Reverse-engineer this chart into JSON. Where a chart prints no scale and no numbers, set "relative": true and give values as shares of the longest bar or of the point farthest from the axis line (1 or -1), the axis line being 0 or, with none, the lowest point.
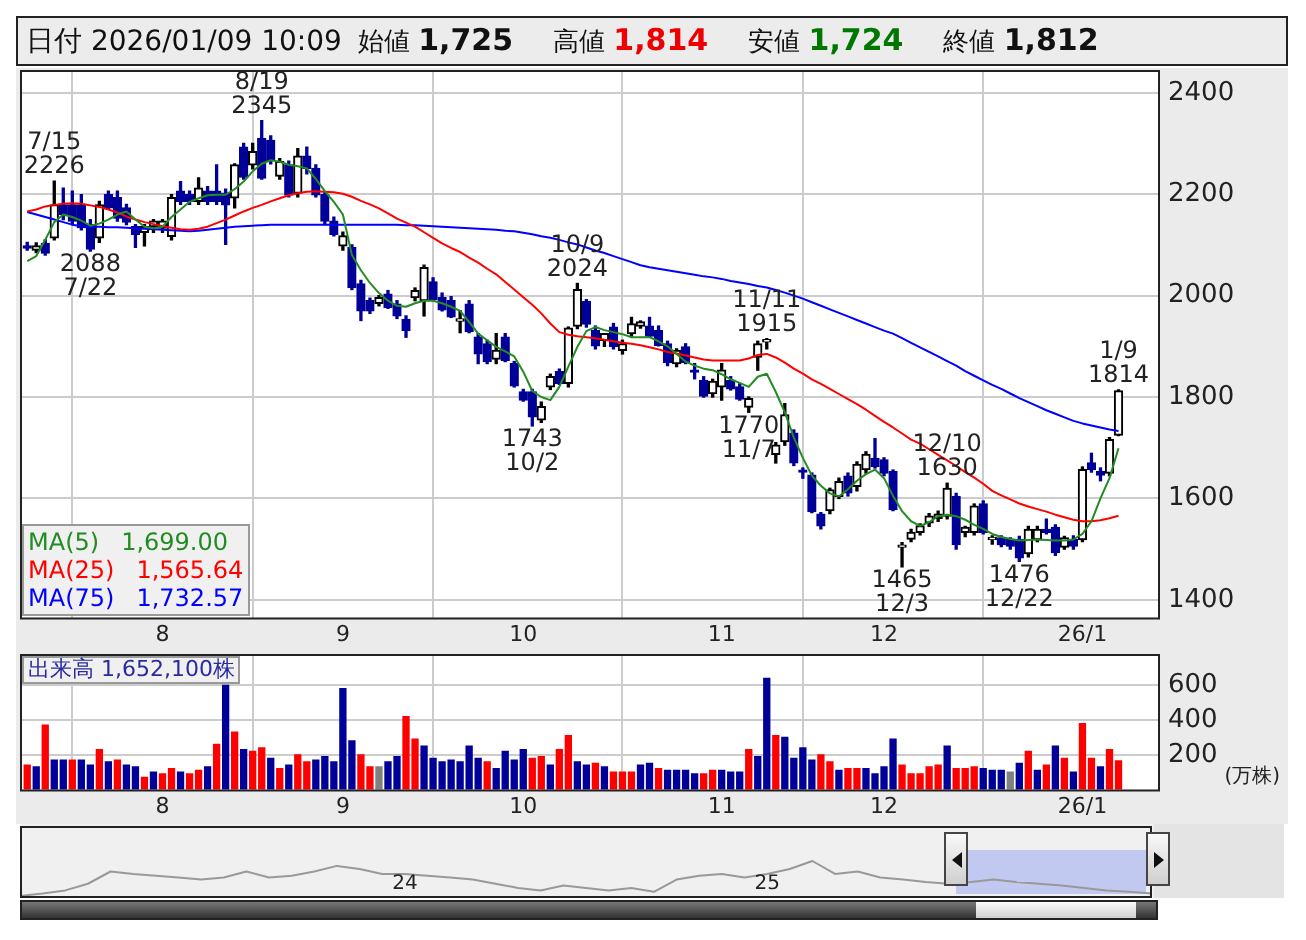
{
  "chart_data": [
    {
      "type": "candlestick",
      "title": "日付 2026/01/09 10:09",
      "legend": "bottom left",
      "grid": true,
      "annotations": [
        "始値 1,725",
        "高値 1,814",
        "安値 1,724",
        "終値 1,812",
        {
          "text": "7/15\n2226",
          "y": 2226
        },
        {
          "text": "2088\n7/22",
          "y": 2088
        },
        {
          "text": "8/19\n2345",
          "y": 2345
        },
        {
          "text": "1743\n10/2",
          "y": 1743
        },
        {
          "text": "10/9\n2024",
          "y": 2024
        },
        {
          "text": "1770\n11/7",
          "y": 1770
        },
        {
          "text": "11/11\n1915",
          "y": 1915
        },
        {
          "text": "1465\n12/3",
          "y": 1465
        },
        {
          "text": "12/10\n1630",
          "y": 1630
        },
        {
          "text": "1476\n12/22",
          "y": 1476
        },
        {
          "text": "1/9\n1814",
          "y": 1814
        }
      ],
      "categories": [
        null,
        null,
        null,
        null,
        null,
        null,
        null,
        null,
        null,
        null,
        null,
        null,
        null,
        null,
        null,
        "8",
        null,
        null,
        null,
        null,
        null,
        null,
        null,
        null,
        null,
        null,
        null,
        null,
        null,
        null,
        null,
        null,
        null,
        null,
        null,
        "9",
        null,
        null,
        null,
        null,
        null,
        null,
        null,
        null,
        null,
        null,
        null,
        null,
        null,
        null,
        null,
        null,
        null,
        null,
        null,
        "10",
        null,
        null,
        null,
        null,
        null,
        null,
        null,
        null,
        null,
        null,
        null,
        null,
        null,
        null,
        null,
        null,
        null,
        null,
        null,
        null,
        null,
        "11",
        null,
        null,
        null,
        null,
        null,
        null,
        null,
        null,
        null,
        null,
        null,
        null,
        null,
        null,
        null,
        null,
        null,
        "12",
        null,
        null,
        null,
        null,
        null,
        null,
        null,
        null,
        null,
        null,
        null,
        null,
        null,
        null,
        null,
        null,
        null,
        null,
        null,
        null,
        null,
        "26/1",
        null,
        null,
        null,
        null
      ],
      "ohlc": [
        [
          2098,
          2105,
          2090,
          2094
        ],
        [
          2090,
          2104,
          2085,
          2098
        ],
        [
          2103,
          2110,
          2080,
          2084
        ],
        [
          2114,
          2226,
          2110,
          2179
        ],
        [
          2179,
          2212,
          2150,
          2160
        ],
        [
          2179,
          2206,
          2140,
          2147
        ],
        [
          2179,
          2199,
          2130,
          2134
        ],
        [
          2140,
          2150,
          2088,
          2092
        ],
        [
          2114,
          2186,
          2105,
          2179
        ],
        [
          2199,
          2206,
          2170,
          2173
        ],
        [
          2193,
          2206,
          2147,
          2153
        ],
        [
          2173,
          2180,
          2140,
          2145
        ],
        [
          2136,
          2140,
          2095,
          2121
        ],
        [
          2125,
          2140,
          2098,
          2136
        ],
        [
          2136,
          2150,
          2125,
          2147
        ],
        [
          2133,
          2150,
          2125,
          2147
        ],
        [
          2117,
          2199,
          2110,
          2193
        ],
        [
          2206,
          2225,
          2180,
          2186
        ],
        [
          2199,
          2206,
          2180,
          2186
        ],
        [
          2186,
          2232,
          2180,
          2212
        ],
        [
          2206,
          2215,
          2180,
          2186
        ],
        [
          2206,
          2258,
          2180,
          2186
        ],
        [
          2202,
          2210,
          2101,
          2179
        ],
        [
          2193,
          2260,
          2173,
          2258
        ],
        [
          2293,
          2300,
          2230,
          2234
        ],
        [
          2258,
          2300,
          2250,
          2284
        ],
        [
          2310,
          2345,
          2230,
          2232
        ],
        [
          2306,
          2315,
          2260,
          2267
        ],
        [
          2236,
          2270,
          2230,
          2264
        ],
        [
          2258,
          2265,
          2195,
          2199
        ],
        [
          2202,
          2290,
          2195,
          2275
        ],
        [
          2275,
          2293,
          2240,
          2251
        ],
        [
          2251,
          2258,
          2195,
          2199
        ],
        [
          2199,
          2205,
          2140,
          2147
        ],
        [
          2147,
          2155,
          2118,
          2121
        ],
        [
          2098,
          2125,
          2090,
          2118
        ],
        [
          2095,
          2100,
          2012,
          2016
        ],
        [
          2023,
          2030,
          1951,
          1970
        ],
        [
          1990,
          1995,
          1965,
          1970
        ],
        [
          1985,
          2000,
          1980,
          1996
        ],
        [
          2003,
          2010,
          1975,
          1977
        ],
        [
          1983,
          1990,
          1955,
          1960
        ],
        [
          1953,
          1960,
          1918,
          1931
        ],
        [
          1996,
          2015,
          1990,
          2010
        ],
        [
          1990,
          2060,
          1960,
          2055
        ],
        [
          2027,
          2035,
          1990,
          1992
        ],
        [
          1996,
          2005,
          1970,
          1972
        ],
        [
          1990,
          1998,
          1957,
          1958
        ],
        [
          1950,
          1970,
          1927,
          1951
        ],
        [
          1983,
          1990,
          1927,
          1929
        ],
        [
          1918,
          1925,
          1866,
          1885
        ],
        [
          1905,
          1912,
          1866,
          1870
        ],
        [
          1875,
          1925,
          1866,
          1892
        ],
        [
          1918,
          1925,
          1870,
          1872
        ],
        [
          1866,
          1870,
          1820,
          1822
        ],
        [
          1810,
          1815,
          1792,
          1794
        ],
        [
          1810,
          1815,
          1743,
          1761
        ],
        [
          1755,
          1790,
          1750,
          1781
        ],
        [
          1820,
          1845,
          1815,
          1840
        ],
        [
          1850,
          1855,
          1825,
          1827
        ],
        [
          1827,
          1938,
          1820,
          1936
        ],
        [
          1940,
          2024,
          1935,
          2012
        ],
        [
          1988,
          1992,
          1938,
          1944
        ],
        [
          1931,
          1940,
          1895,
          1901
        ],
        [
          1912,
          1925,
          1900,
          1925
        ],
        [
          1938,
          1945,
          1895,
          1900
        ],
        [
          1892,
          1912,
          1885,
          1905
        ],
        [
          1925,
          1957,
          1920,
          1944
        ],
        [
          1940,
          1950,
          1936,
          1948
        ],
        [
          1940,
          1957,
          1918,
          1920
        ],
        [
          1931,
          1940,
          1901,
          1902
        ],
        [
          1905,
          1910,
          1862,
          1868
        ],
        [
          1866,
          1895,
          1860,
          1892
        ],
        [
          1899,
          1905,
          1866,
          1868
        ],
        [
          1852,
          1866,
          1836,
          1849
        ],
        [
          1833,
          1840,
          1800,
          1802
        ],
        [
          1807,
          1835,
          1800,
          1831
        ],
        [
          1820,
          1866,
          1794,
          1853
        ],
        [
          1833,
          1840,
          1814,
          1816
        ],
        [
          1820,
          1826,
          1794,
          1796
        ],
        [
          1780,
          1800,
          1770,
          1797
        ],
        [
          1879,
          1910,
          1853,
          1905
        ],
        [
          1909,
          1915,
          1895,
          1912
        ],
        [
          1687,
          1710,
          1670,
          1705
        ],
        [
          1712,
          1787,
          1705,
          1765
        ],
        [
          1729,
          1735,
          1665,
          1670
        ],
        [
          1655,
          1660,
          1640,
          1652
        ],
        [
          1646,
          1650,
          1572,
          1574
        ],
        [
          1569,
          1572,
          1540,
          1546
        ],
        [
          1576,
          1620,
          1570,
          1617
        ],
        [
          1604,
          1640,
          1600,
          1633
        ],
        [
          1644,
          1650,
          1605,
          1611
        ],
        [
          1624,
          1672,
          1615,
          1667
        ],
        [
          1657,
          1692,
          1650,
          1687
        ],
        [
          1679,
          1718,
          1660,
          1663
        ],
        [
          1676,
          1680,
          1645,
          1650
        ],
        [
          1653,
          1656,
          1576,
          1578
        ],
        [
          1504,
          1513,
          1465,
          1507
        ],
        [
          1520,
          1539,
          1515,
          1533
        ],
        [
          1533,
          1550,
          1528,
          1546
        ],
        [
          1552,
          1570,
          1545,
          1565
        ],
        [
          1561,
          1575,
          1555,
          1569
        ],
        [
          1565,
          1630,
          1560,
          1620
        ],
        [
          1604,
          1610,
          1500,
          1509
        ],
        [
          1533,
          1545,
          1525,
          1543
        ],
        [
          1533,
          1589,
          1528,
          1585
        ],
        [
          1589,
          1595,
          1530,
          1533
        ],
        [
          1519,
          1526,
          1510,
          1520
        ],
        [
          1522,
          1526,
          1505,
          1509
        ],
        [
          1519,
          1522,
          1500,
          1506
        ],
        [
          1519,
          1525,
          1476,
          1483
        ],
        [
          1491,
          1545,
          1485,
          1539
        ],
        [
          1519,
          1545,
          1515,
          1539
        ],
        [
          1539,
          1559,
          1530,
          1533
        ],
        [
          1543,
          1548,
          1488,
          1493
        ],
        [
          1504,
          1525,
          1500,
          1522
        ],
        [
          1519,
          1526,
          1500,
          1506
        ],
        [
          1519,
          1662,
          1515,
          1657
        ],
        [
          1670,
          1689,
          1652,
          1657
        ],
        [
          1653,
          1660,
          1635,
          1646
        ],
        [
          1650,
          1720,
          1645,
          1716
        ],
        [
          1725,
          1814,
          1724,
          1812
        ]
      ],
      "series": [
        {
          "type": "line",
          "name": "MA(5) 1,699.00",
          "color": "#228b22",
          "values": [
            2068,
            2078,
            2110,
            2145,
            2160,
            2155,
            2148,
            2138,
            2142,
            2150,
            2160,
            2166,
            2150,
            2136,
            2133,
            2136,
            2155,
            2170,
            2185,
            2192,
            2198,
            2199,
            2199,
            2210,
            2225,
            2245,
            2260,
            2267,
            2264,
            2258,
            2255,
            2251,
            2230,
            2206,
            2185,
            2160,
            2080,
            2050,
            2025,
            2005,
            1990,
            1980,
            1978,
            1985,
            1990,
            1990,
            1985,
            1978,
            1970,
            1948,
            1925,
            1912,
            1899,
            1890,
            1880,
            1850,
            1812,
            1800,
            1794,
            1820,
            1860,
            1899,
            1930,
            1938,
            1932,
            1928,
            1924,
            1918,
            1918,
            1918,
            1910,
            1900,
            1885,
            1870,
            1862,
            1856,
            1853,
            1845,
            1835,
            1828,
            1820,
            1840,
            1846,
            1810,
            1770,
            1720,
            1680,
            1645,
            1625,
            1610,
            1604,
            1618,
            1635,
            1648,
            1657,
            1640,
            1605,
            1575,
            1555,
            1546,
            1553,
            1565,
            1568,
            1565,
            1558,
            1548,
            1540,
            1530,
            1524,
            1520,
            1517,
            1518,
            1519,
            1518,
            1517,
            1517,
            1519,
            1530,
            1555,
            1600,
            1640,
            1699
          ]
        },
        {
          "type": "line",
          "name": "MA(25) 1,565.64",
          "color": "#ff0000",
          "values": [
            2166,
            2170,
            2176,
            2179,
            2181,
            2182,
            2181,
            2178,
            2175,
            2170,
            2164,
            2156,
            2150,
            2145,
            2141,
            2137,
            2134,
            2131,
            2130,
            2132,
            2136,
            2143,
            2150,
            2158,
            2166,
            2173,
            2179,
            2186,
            2192,
            2198,
            2202,
            2205,
            2206,
            2205,
            2204,
            2201,
            2195,
            2187,
            2180,
            2172,
            2162,
            2152,
            2144,
            2136,
            2125,
            2114,
            2103,
            2094,
            2086,
            2075,
            2065,
            2053,
            2042,
            2027,
            2012,
            1997,
            1982,
            1965,
            1945,
            1928,
            1923,
            1920,
            1918,
            1916,
            1913,
            1910,
            1907,
            1905,
            1902,
            1898,
            1894,
            1889,
            1886,
            1882,
            1878,
            1874,
            1872,
            1872,
            1872,
            1872,
            1876,
            1883,
            1885,
            1878,
            1868,
            1856,
            1846,
            1835,
            1826,
            1816,
            1806,
            1796,
            1786,
            1775,
            1763,
            1751,
            1740,
            1728,
            1716,
            1708,
            1697,
            1686,
            1675,
            1664,
            1652,
            1641,
            1629,
            1615,
            1606,
            1598,
            1590,
            1584,
            1579,
            1574,
            1568,
            1563,
            1558,
            1555,
            1555,
            1557,
            1561,
            1566
          ]
        },
        {
          "type": "line",
          "name": "MA(75) 1,732.57",
          "color": "#0000ff",
          "values": [
            2165,
            2160,
            2155,
            2150,
            2145,
            2140,
            2137,
            2136,
            2136,
            2135,
            2135,
            2134,
            2133,
            2132,
            2131,
            2130,
            2129,
            2128,
            2127,
            2128,
            2130,
            2132,
            2134,
            2136,
            2137,
            2138,
            2139,
            2140,
            2140,
            2140,
            2140,
            2140,
            2140,
            2140,
            2140,
            2140,
            2140,
            2140,
            2140,
            2140,
            2140,
            2140,
            2139,
            2139,
            2138,
            2137,
            2136,
            2135,
            2134,
            2133,
            2132,
            2131,
            2130,
            2128,
            2127,
            2124,
            2121,
            2117,
            2114,
            2110,
            2105,
            2101,
            2095,
            2089,
            2084,
            2078,
            2072,
            2066,
            2060,
            2056,
            2053,
            2050,
            2047,
            2044,
            2041,
            2038,
            2036,
            2033,
            2029,
            2026,
            2023,
            2019,
            2016,
            2011,
            2006,
            2000,
            1994,
            1987,
            1980,
            1973,
            1966,
            1959,
            1952,
            1945,
            1938,
            1931,
            1925,
            1916,
            1907,
            1898,
            1889,
            1880,
            1871,
            1862,
            1851,
            1842,
            1833,
            1824,
            1816,
            1807,
            1798,
            1790,
            1782,
            1774,
            1767,
            1760,
            1753,
            1748,
            1744,
            1740,
            1736,
            1733
          ]
        }
      ],
      "ylim": [
        1365,
        2445
      ],
      "yticks": [
        1400,
        1600,
        1800,
        2000,
        2200,
        2400
      ]
    },
    {
      "type": "bar",
      "title": "出来高 1,652,100株",
      "ylabel": "(万株)",
      "grid": true,
      "categories": [
        null,
        null,
        null,
        null,
        null,
        null,
        null,
        null,
        null,
        null,
        null,
        null,
        null,
        null,
        null,
        "8",
        null,
        null,
        null,
        null,
        null,
        null,
        null,
        null,
        null,
        null,
        null,
        null,
        null,
        null,
        null,
        null,
        null,
        null,
        null,
        "9",
        null,
        null,
        null,
        null,
        null,
        null,
        null,
        null,
        null,
        null,
        null,
        null,
        null,
        null,
        null,
        null,
        null,
        null,
        null,
        "10",
        null,
        null,
        null,
        null,
        null,
        null,
        null,
        null,
        null,
        null,
        null,
        null,
        null,
        null,
        null,
        null,
        null,
        null,
        null,
        null,
        null,
        "11",
        null,
        null,
        null,
        null,
        null,
        null,
        null,
        null,
        null,
        null,
        null,
        null,
        null,
        null,
        null,
        null,
        null,
        "12",
        null,
        null,
        null,
        null,
        null,
        null,
        null,
        null,
        null,
        null,
        null,
        null,
        null,
        null,
        null,
        null,
        null,
        null,
        null,
        null,
        null,
        "26/1",
        null,
        null,
        null,
        null
      ],
      "values": [
        140,
        130,
        370,
        170,
        170,
        170,
        170,
        140,
        230,
        160,
        170,
        140,
        130,
        70,
        100,
        90,
        120,
        100,
        90,
        110,
        130,
        260,
        600,
        330,
        230,
        220,
        240,
        180,
        120,
        140,
        200,
        160,
        170,
        190,
        160,
        580,
        280,
        200,
        130,
        130,
        160,
        190,
        420,
        290,
        250,
        180,
        160,
        170,
        160,
        250,
        180,
        160,
        120,
        220,
        170,
        230,
        180,
        190,
        140,
        230,
        310,
        160,
        140,
        150,
        130,
        100,
        100,
        100,
        140,
        150,
        120,
        110,
        110,
        110,
        90,
        90,
        110,
        110,
        100,
        100,
        230,
        190,
        640,
        310,
        300,
        180,
        240,
        170,
        200,
        160,
        110,
        120,
        120,
        120,
        90,
        130,
        290,
        140,
        90,
        90,
        130,
        140,
        250,
        120,
        120,
        130,
        120,
        110,
        110,
        100,
        150,
        220,
        110,
        140,
        250,
        180,
        100,
        380,
        180,
        130,
        230,
        165
      ],
      "colors": [
        "#ff0000",
        "#000099",
        "#ff0000",
        "#000099",
        "#000099",
        "#ff0000",
        "#000099",
        "#000099",
        "#ff0000",
        "#000099",
        "#ff0000",
        "#000099",
        "#000099",
        "#ff0000",
        "#000099",
        "#ff0000",
        "#ff0000",
        "#000099",
        "#ff0000",
        "#ff0000",
        "#000099",
        "#ff0000",
        "#000099",
        "#ff0000",
        "#000099",
        "#ff0000",
        "#ff0000",
        "#000099",
        "#ff0000",
        "#000099",
        "#ff0000",
        "#ff0000",
        "#000099",
        "#000099",
        "#000099",
        "#000099",
        "#000099",
        "#ff0000",
        "#ff0000",
        "#808080",
        "#000099",
        "#000099",
        "#ff0000",
        "#ff0000",
        "#000099",
        "#000099",
        "#000099",
        "#000099",
        "#000099",
        "#000099",
        "#000099",
        "#ff0000",
        "#000099",
        "#000099",
        "#000099",
        "#000099",
        "#ff0000",
        "#ff0000",
        "#000099",
        "#ff0000",
        "#ff0000",
        "#000099",
        "#000099",
        "#ff0000",
        "#000099",
        "#ff0000",
        "#ff0000",
        "#ff0000",
        "#000099",
        "#000099",
        "#ff0000",
        "#000099",
        "#000099",
        "#000099",
        "#000099",
        "#ff0000",
        "#ff0000",
        "#000099",
        "#000099",
        "#000099",
        "#ff0000",
        "#000099",
        "#000099",
        "#ff0000",
        "#000099",
        "#000099",
        "#000099",
        "#000099",
        "#ff0000",
        "#ff0000",
        "#000099",
        "#ff0000",
        "#ff0000",
        "#000099",
        "#000099",
        "#000099",
        "#000099",
        "#ff0000",
        "#ff0000",
        "#ff0000",
        "#ff0000",
        "#ff0000",
        "#000099",
        "#ff0000",
        "#ff0000",
        "#ff0000",
        "#000099",
        "#000099",
        "#000099",
        "#808080",
        "#000099",
        "#ff0000",
        "#000099",
        "#ff0000",
        "#000099",
        "#ff0000",
        "#000099",
        "#ff0000",
        "#ff0000",
        "#000099",
        "#ff0000",
        "#ff0000"
      ],
      "ylim": [
        0,
        780
      ],
      "yticks": [
        200,
        400,
        600
      ]
    },
    {
      "type": "line",
      "relative": true,
      "tick_labels": "x",
      "color": "#999999",
      "categories": [
        null,
        null,
        null,
        null,
        null,
        null,
        null,
        null,
        null,
        null,
        null,
        null,
        null,
        null,
        null,
        null,
        null,
        "24",
        null,
        null,
        null,
        null,
        null,
        null,
        null,
        null,
        null,
        null,
        null,
        null,
        null,
        null,
        null,
        "25",
        null,
        null,
        null,
        null,
        null,
        null,
        null,
        null,
        null,
        null,
        null,
        null,
        null,
        null,
        null,
        null,
        null
      ],
      "values": [
        0,
        0.07,
        0.16,
        0.35,
        0.7,
        0.63,
        0.58,
        0.53,
        0.47,
        0.53,
        0.7,
        0.53,
        0.58,
        0.7,
        0.86,
        0.77,
        0.63,
        0.63,
        0.58,
        0.53,
        0.47,
        0.35,
        0.23,
        0.16,
        0.3,
        0.23,
        0.16,
        0.23,
        0.12,
        0.47,
        0.58,
        0.63,
        0.53,
        0.63,
        0.77,
        1,
        0.63,
        0.7,
        0.53,
        0.47,
        0.4,
        0.35,
        0.4,
        0.47,
        0.4,
        0.35,
        0.3,
        0.23,
        0.16,
        0.12,
        0.07
      ]
    }
  ]
}
